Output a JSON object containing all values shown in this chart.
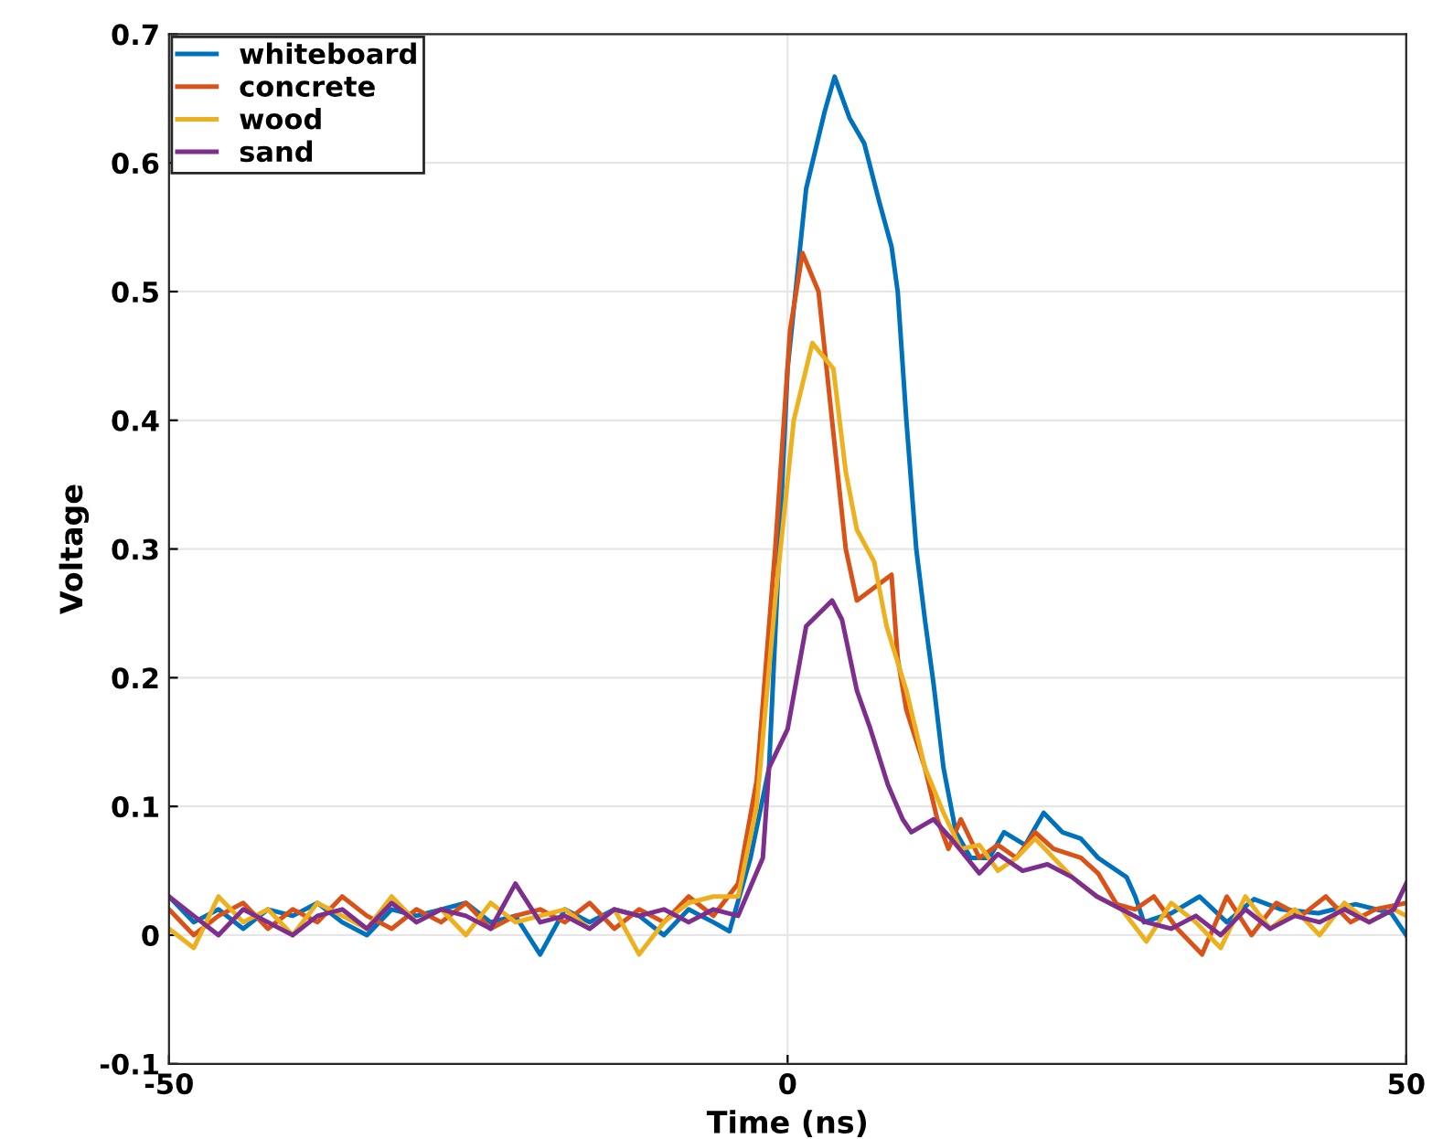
{
  "chart_data": {
    "type": "line",
    "xlabel": "Time (ns)",
    "ylabel": "Voltage",
    "xlim": [
      -50,
      50
    ],
    "ylim": [
      -0.1,
      0.7
    ],
    "xticks": [
      -50,
      0,
      50
    ],
    "yticks": [
      -0.1,
      0,
      0.1,
      0.2,
      0.3,
      0.4,
      0.5,
      0.6,
      0.7
    ],
    "grid": true,
    "legend": "top left",
    "line_style": "solid",
    "series": [
      {
        "name": "whiteboard",
        "color": "#0072bd",
        "x": [
          -50,
          -48,
          -46,
          -44,
          -42,
          -40,
          -38,
          -36,
          -34,
          -32,
          -30,
          -28,
          -26,
          -24,
          -22,
          -20,
          -18,
          -16,
          -14,
          -12,
          -10,
          -8,
          -6,
          -4.7,
          -3,
          -1.5,
          0,
          1.5,
          3,
          3.8,
          5,
          6.2,
          7.4,
          8.4,
          8.9,
          9.6,
          10.4,
          11.1,
          11.8,
          12.6,
          13.6,
          14.8,
          16.3,
          17.5,
          19.2,
          20.7,
          22.2,
          23.7,
          25.1,
          27.4,
          28.1,
          28.8,
          31,
          33.3,
          35.5,
          37.7,
          39.9,
          42.9,
          45.9,
          48.8,
          50
        ],
        "values": [
          0.03,
          0.01,
          0.02,
          0.005,
          0.02,
          0.015,
          0.025,
          0.01,
          0.0,
          0.02,
          0.015,
          0.02,
          0.025,
          0.01,
          0.015,
          -0.015,
          0.02,
          0.01,
          0.02,
          0.015,
          0.0,
          0.02,
          0.01,
          0.003,
          0.06,
          0.13,
          0.44,
          0.58,
          0.64,
          0.667,
          0.635,
          0.615,
          0.57,
          0.535,
          0.5,
          0.4,
          0.3,
          0.245,
          0.195,
          0.13,
          0.08,
          0.06,
          0.06,
          0.08,
          0.07,
          0.095,
          0.08,
          0.075,
          0.06,
          0.045,
          0.03,
          0.01,
          0.017,
          0.03,
          0.01,
          0.028,
          0.02,
          0.017,
          0.024,
          0.017,
          0.0
        ]
      },
      {
        "name": "concrete",
        "color": "#d95319",
        "x": [
          -50,
          -48,
          -46,
          -44,
          -42,
          -40,
          -38,
          -36,
          -34,
          -32,
          -30,
          -28,
          -26,
          -24,
          -22,
          -20,
          -18,
          -16,
          -14,
          -12,
          -10,
          -8,
          -6,
          -4,
          -2.5,
          -1,
          0.2,
          1.2,
          2.5,
          3.7,
          4.7,
          5.6,
          8.4,
          8.9,
          9.6,
          11.1,
          12.1,
          13,
          14,
          15.5,
          17,
          18.5,
          20,
          21.5,
          23.7,
          25.1,
          26.6,
          28.1,
          29.6,
          31.5,
          33.5,
          35.5,
          37.5,
          39.5,
          41.5,
          43.5,
          45.5,
          47.5,
          50
        ],
        "values": [
          0.02,
          0.0,
          0.015,
          0.025,
          0.005,
          0.02,
          0.01,
          0.03,
          0.015,
          0.005,
          0.02,
          0.01,
          0.025,
          0.005,
          0.015,
          0.02,
          0.01,
          0.025,
          0.005,
          0.02,
          0.01,
          0.03,
          0.015,
          0.04,
          0.12,
          0.3,
          0.47,
          0.53,
          0.5,
          0.39,
          0.3,
          0.26,
          0.28,
          0.215,
          0.175,
          0.13,
          0.09,
          0.067,
          0.09,
          0.06,
          0.07,
          0.06,
          0.08,
          0.067,
          0.06,
          0.048,
          0.024,
          0.02,
          0.03,
          0.005,
          -0.015,
          0.03,
          0.0,
          0.025,
          0.015,
          0.03,
          0.01,
          0.02,
          0.025
        ]
      },
      {
        "name": "wood",
        "color": "#edb120",
        "x": [
          -50,
          -48,
          -46,
          -44,
          -42,
          -40,
          -38,
          -36,
          -34,
          -32,
          -30,
          -28,
          -26,
          -24,
          -22,
          -20,
          -18,
          -16,
          -14,
          -12,
          -10,
          -8,
          -6,
          -4,
          -2.5,
          -1,
          0.5,
          2,
          3.7,
          4.7,
          5.6,
          7,
          8,
          9.6,
          11.1,
          12.6,
          14,
          15.5,
          17,
          18.5,
          20,
          21.5,
          23,
          25,
          27,
          29,
          31,
          33,
          35,
          37,
          39,
          41,
          43,
          45,
          47,
          49,
          50
        ],
        "values": [
          0.005,
          -0.01,
          0.03,
          0.01,
          0.02,
          0.0,
          0.025,
          0.015,
          0.005,
          0.03,
          0.01,
          0.02,
          0.0,
          0.025,
          0.01,
          0.015,
          0.02,
          0.005,
          0.02,
          -0.015,
          0.01,
          0.025,
          0.03,
          0.03,
          0.1,
          0.26,
          0.4,
          0.46,
          0.44,
          0.36,
          0.315,
          0.29,
          0.24,
          0.19,
          0.13,
          0.095,
          0.067,
          0.07,
          0.05,
          0.06,
          0.075,
          0.06,
          0.045,
          0.03,
          0.02,
          -0.005,
          0.025,
          0.01,
          -0.01,
          0.03,
          0.005,
          0.02,
          0.0,
          0.025,
          0.01,
          0.02,
          0.015
        ]
      },
      {
        "name": "sand",
        "color": "#7e2f8e",
        "x": [
          -50,
          -48,
          -46,
          -44,
          -42,
          -40,
          -38,
          -36,
          -34,
          -32,
          -30,
          -28,
          -26,
          -24,
          -22,
          -20,
          -18,
          -16,
          -14,
          -12,
          -10,
          -8,
          -6,
          -4,
          -2,
          -1.5,
          0,
          1.5,
          3.6,
          4.4,
          5.6,
          6.7,
          8.1,
          9.3,
          10,
          11.8,
          13.3,
          15.5,
          17,
          19,
          21,
          23,
          25,
          27,
          29,
          31,
          33,
          35,
          37,
          39,
          41,
          43,
          45,
          47,
          49,
          50
        ],
        "values": [
          0.03,
          0.015,
          0.0,
          0.02,
          0.01,
          0.0,
          0.015,
          0.02,
          0.005,
          0.025,
          0.01,
          0.02,
          0.015,
          0.005,
          0.04,
          0.01,
          0.015,
          0.005,
          0.02,
          0.015,
          0.02,
          0.01,
          0.02,
          0.015,
          0.06,
          0.13,
          0.16,
          0.24,
          0.26,
          0.245,
          0.19,
          0.16,
          0.117,
          0.09,
          0.08,
          0.09,
          0.074,
          0.048,
          0.063,
          0.05,
          0.055,
          0.045,
          0.03,
          0.02,
          0.01,
          0.005,
          0.015,
          0.0,
          0.02,
          0.005,
          0.015,
          0.01,
          0.02,
          0.01,
          0.02,
          0.04
        ]
      }
    ]
  }
}
